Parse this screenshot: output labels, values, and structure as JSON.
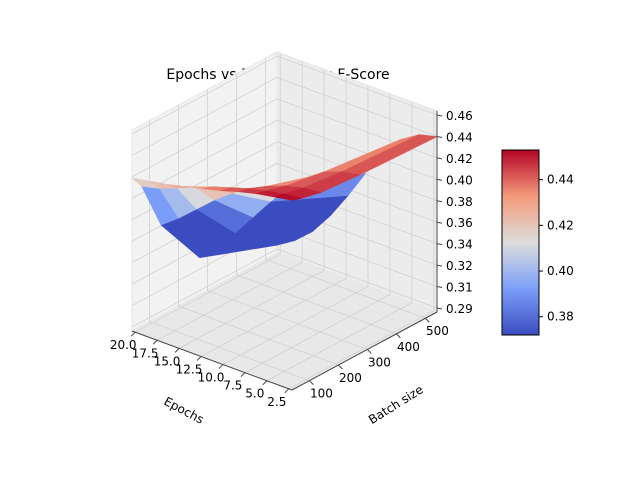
{
  "chart_data": {
    "type": "surface",
    "title": "Epochs vs Batch size vs F-Score",
    "xlabel": "Epochs",
    "ylabel": "Batch size",
    "zlabel": "",
    "x_ticks": [
      "20.0",
      "17.5",
      "15.0",
      "12.5",
      "10.0",
      "7.5",
      "5.0",
      "2.5"
    ],
    "y_ticks": [
      "100",
      "200",
      "300",
      "400",
      "500"
    ],
    "z_ticks": [
      "0.46",
      "0.44",
      "0.42",
      "0.40",
      "0.38",
      "0.36",
      "0.34",
      "0.32",
      "0.31",
      "0.29"
    ],
    "colorbar": {
      "colormap": "coolwarm",
      "ticks": [
        "0.44",
        "0.42",
        "0.40",
        "0.38"
      ],
      "range": [
        0.372,
        0.453
      ]
    },
    "epochs": [
      2,
      4,
      6,
      8,
      10,
      12,
      14,
      16,
      18,
      20
    ],
    "batch_sizes": [
      32,
      64,
      128,
      256,
      512
    ],
    "f_score": [
      [
        0.455,
        0.452,
        0.449,
        0.445,
        0.44,
        0.436,
        0.432,
        0.428,
        0.425,
        0.422
      ],
      [
        0.452,
        0.45,
        0.447,
        0.443,
        0.438,
        0.433,
        0.427,
        0.42,
        0.414,
        0.41
      ],
      [
        0.448,
        0.446,
        0.442,
        0.436,
        0.428,
        0.418,
        0.406,
        0.392,
        0.378,
        0.366
      ],
      [
        0.445,
        0.442,
        0.436,
        0.425,
        0.41,
        0.392,
        0.372,
        0.352,
        0.334,
        0.318
      ],
      [
        0.442,
        0.438,
        0.428,
        0.41,
        0.386,
        0.36,
        0.336,
        0.316,
        0.302,
        0.292
      ]
    ]
  }
}
